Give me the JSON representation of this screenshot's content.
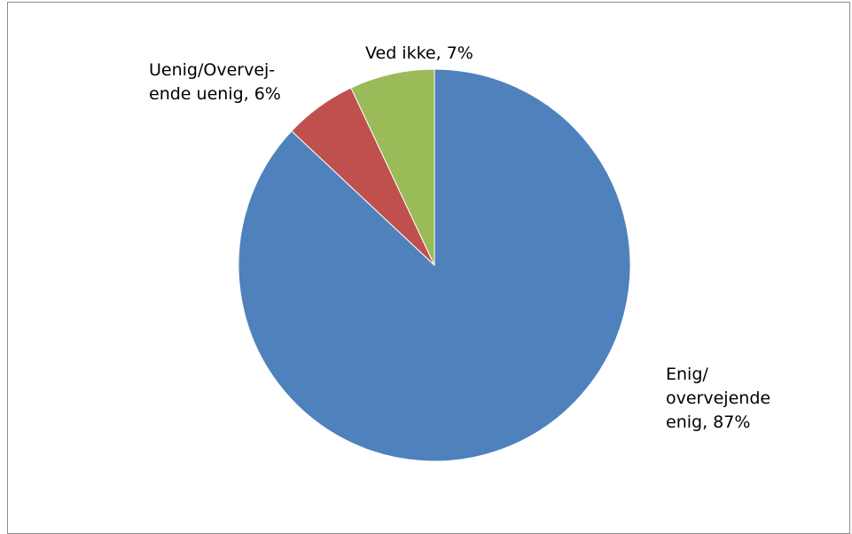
{
  "chart_data": {
    "type": "pie",
    "title": "",
    "slices": [
      {
        "label": "Enig/ overvejende enig",
        "value": 87,
        "color": "#4F81BD",
        "label_lines": [
          "Enig/",
          "overvejende",
          "enig, 87%"
        ]
      },
      {
        "label": "Uenig/Overvej-ende uenig",
        "value": 6,
        "color": "#C0504D",
        "label_lines": [
          "Uenig/Overvej-",
          "ende uenig, 6%"
        ]
      },
      {
        "label": "Ved ikke",
        "value": 7,
        "color": "#9BBB59",
        "label_lines": [
          "Ved ikke, 7%"
        ]
      }
    ],
    "unit": "%",
    "legend": "none",
    "start_angle": "12 o'clock",
    "direction": "clockwise"
  }
}
